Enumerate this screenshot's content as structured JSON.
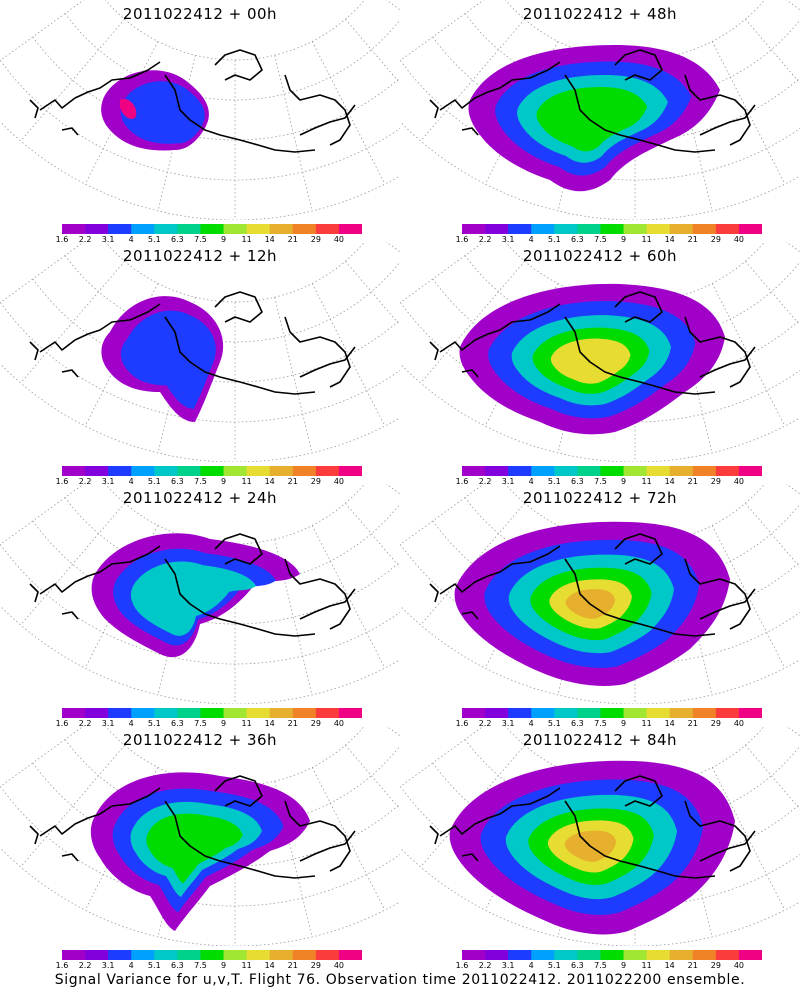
{
  "caption": "Signal Variance for u,v,T. Flight 76. Observation time 2011022412. 2011022200 ensemble.",
  "colorbar": {
    "labels": [
      "1.6",
      "2.2",
      "3.1",
      "4",
      "5.1",
      "6.3",
      "7.5",
      "9",
      "11",
      "14",
      "21",
      "29",
      "40"
    ],
    "colors": [
      "#a000c8",
      "#8200dc",
      "#1e3cff",
      "#00a0ff",
      "#00c8c8",
      "#00d28c",
      "#00dc00",
      "#a0e632",
      "#e6dc32",
      "#e6af2d",
      "#f08228",
      "#fa3c3c",
      "#f00082"
    ]
  },
  "panels": [
    {
      "title": "2011022412 + 00h",
      "level": 0
    },
    {
      "title": "2011022412 + 48h",
      "level": 4
    },
    {
      "title": "2011022412 + 12h",
      "level": 1
    },
    {
      "title": "2011022412 + 60h",
      "level": 5
    },
    {
      "title": "2011022412 + 24h",
      "level": 2
    },
    {
      "title": "2011022412 + 72h",
      "level": 6
    },
    {
      "title": "2011022412 + 36h",
      "level": 3
    },
    {
      "title": "2011022412 + 84h",
      "level": 7
    }
  ]
}
